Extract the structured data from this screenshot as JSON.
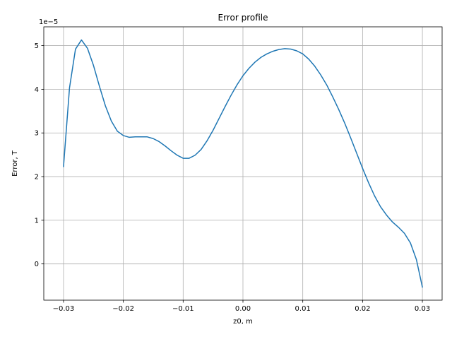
{
  "chart_data": {
    "type": "line",
    "title": "Error profile",
    "xlabel": "z0, m",
    "ylabel": "Error, T",
    "offset_label": "1e−5",
    "xlim": [
      -0.0333,
      0.0333
    ],
    "ylim": [
      -0.83,
      5.43
    ],
    "xticks": [
      -0.03,
      -0.02,
      -0.01,
      0.0,
      0.01,
      0.02,
      0.03
    ],
    "xtick_labels": [
      "−0.03",
      "−0.02",
      "−0.01",
      "0.00",
      "0.01",
      "0.02",
      "0.03"
    ],
    "yticks": [
      0,
      1,
      2,
      3,
      4,
      5
    ],
    "ytick_labels": [
      "0",
      "1",
      "2",
      "3",
      "4",
      "5"
    ],
    "grid": true,
    "series": [
      {
        "color": "#1f77b4",
        "x": [
          -0.03,
          -0.029,
          -0.028,
          -0.027,
          -0.026,
          -0.025,
          -0.024,
          -0.023,
          -0.022,
          -0.021,
          -0.02,
          -0.019,
          -0.018,
          -0.017,
          -0.016,
          -0.015,
          -0.014,
          -0.013,
          -0.012,
          -0.011,
          -0.01,
          -0.009,
          -0.008,
          -0.007,
          -0.006,
          -0.005,
          -0.004,
          -0.003,
          -0.002,
          -0.001,
          0.0,
          0.001,
          0.002,
          0.003,
          0.004,
          0.005,
          0.006,
          0.007,
          0.008,
          0.009,
          0.01,
          0.011,
          0.012,
          0.013,
          0.014,
          0.015,
          0.016,
          0.017,
          0.018,
          0.019,
          0.02,
          0.021,
          0.022,
          0.023,
          0.024,
          0.025,
          0.026,
          0.027,
          0.028,
          0.029,
          0.03
        ],
        "y": [
          2.23,
          4.03,
          4.92,
          5.13,
          4.94,
          4.55,
          4.07,
          3.62,
          3.27,
          3.04,
          2.94,
          2.9,
          2.91,
          2.91,
          2.91,
          2.87,
          2.8,
          2.7,
          2.59,
          2.49,
          2.42,
          2.42,
          2.49,
          2.62,
          2.82,
          3.06,
          3.33,
          3.6,
          3.86,
          4.1,
          4.31,
          4.48,
          4.62,
          4.73,
          4.81,
          4.87,
          4.91,
          4.93,
          4.92,
          4.88,
          4.81,
          4.69,
          4.53,
          4.33,
          4.1,
          3.83,
          3.54,
          3.23,
          2.89,
          2.54,
          2.19,
          1.86,
          1.56,
          1.31,
          1.12,
          0.96,
          0.84,
          0.7,
          0.48,
          0.1,
          -0.53
        ]
      }
    ]
  }
}
